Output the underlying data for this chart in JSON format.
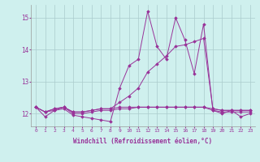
{
  "xlabel": "Windchill (Refroidissement éolien,°C)",
  "ylabel": "",
  "bg_color": "#cff0ee",
  "grid_color": "#aacccc",
  "line_color": "#993399",
  "xlim": [
    -0.5,
    23.5
  ],
  "ylim": [
    11.6,
    15.4
  ],
  "yticks": [
    12,
    13,
    14,
    15
  ],
  "xticks": [
    0,
    1,
    2,
    3,
    4,
    5,
    6,
    7,
    8,
    9,
    10,
    11,
    12,
    13,
    14,
    15,
    16,
    17,
    18,
    19,
    20,
    21,
    22,
    23
  ],
  "series": [
    [
      12.2,
      11.9,
      12.1,
      12.15,
      11.95,
      11.9,
      11.85,
      11.8,
      11.75,
      12.8,
      13.5,
      13.7,
      15.2,
      14.1,
      13.7,
      15.0,
      14.3,
      13.25,
      14.8,
      12.1,
      12.0,
      12.1,
      11.9,
      12.0
    ],
    [
      12.2,
      12.05,
      12.15,
      12.2,
      12.05,
      12.05,
      12.1,
      12.15,
      12.15,
      12.2,
      12.2,
      12.2,
      12.2,
      12.2,
      12.2,
      12.2,
      12.2,
      12.2,
      12.2,
      12.15,
      12.1,
      12.1,
      12.1,
      12.1
    ],
    [
      12.2,
      12.05,
      12.15,
      12.2,
      12.05,
      12.05,
      12.1,
      12.15,
      12.15,
      12.35,
      12.55,
      12.8,
      13.3,
      13.55,
      13.8,
      14.1,
      14.15,
      14.25,
      14.35,
      12.15,
      12.1,
      12.1,
      12.1,
      12.1
    ],
    [
      12.2,
      12.05,
      12.1,
      12.2,
      12.0,
      12.0,
      12.05,
      12.1,
      12.1,
      12.15,
      12.15,
      12.2,
      12.2,
      12.2,
      12.2,
      12.2,
      12.2,
      12.2,
      12.2,
      12.1,
      12.05,
      12.05,
      12.05,
      12.05
    ]
  ]
}
